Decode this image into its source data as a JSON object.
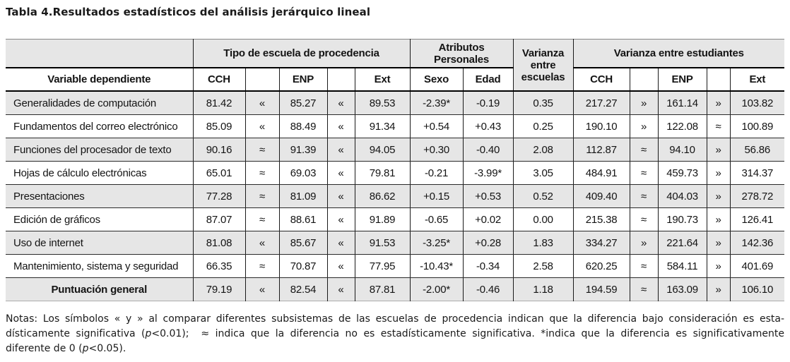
{
  "title": "Tabla 4.Resultados estadísticos del análisis jerárquico lineal",
  "colors": {
    "row_shade": "#e6e6e6",
    "grid_line": "#1a1a1a",
    "text": "#141414"
  },
  "table": {
    "group_headers": [
      "",
      "Tipo de escuela de procedencia",
      "Atributos Personales",
      "Varianza entre escuelas",
      "Varianza entre estudiantes"
    ],
    "sub_headers": [
      "Variable dependiente",
      "CCH",
      "",
      "ENP",
      "",
      "Ext",
      "Sexo",
      "Edad",
      "CCH",
      "",
      "ENP",
      "",
      "Ext"
    ],
    "rows": [
      {
        "label": "Generalidades de computación",
        "cells": [
          "81.42",
          "«",
          "85.27",
          "«",
          "89.53",
          "-2.39*",
          "-0.19",
          "0.35",
          "217.27",
          "»",
          "161.14",
          "»",
          "103.82"
        ]
      },
      {
        "label": "Fundamentos del correo electrónico",
        "cells": [
          "85.09",
          "«",
          "88.49",
          "«",
          "91.34",
          "+0.54",
          "+0.43",
          "0.25",
          "190.10",
          "»",
          "122.08",
          "≈",
          "100.89"
        ]
      },
      {
        "label": "Funciones del procesador de texto",
        "cells": [
          "90.16",
          "≈",
          "91.39",
          "«",
          "94.05",
          "+0.30",
          "-0.40",
          "2.08",
          "112.87",
          "≈",
          "94.10",
          "»",
          "56.86"
        ]
      },
      {
        "label": "Hojas de cálculo electrónicas",
        "cells": [
          "65.01",
          "≈",
          "69.03",
          "«",
          "79.81",
          "-0.21",
          "-3.99*",
          "3.05",
          "484.91",
          "≈",
          "459.73",
          "»",
          "314.37"
        ]
      },
      {
        "label": "Presentaciones",
        "cells": [
          "77.28",
          "≈",
          "81.09",
          "«",
          "86.62",
          "+0.15",
          "+0.53",
          "0.52",
          "409.40",
          "≈",
          "404.03",
          "»",
          "278.72"
        ]
      },
      {
        "label": "Edición de gráficos",
        "cells": [
          "87.07",
          "≈",
          "88.61",
          "«",
          "91.89",
          "-0.65",
          "+0.02",
          "0.00",
          "215.38",
          "≈",
          "190.73",
          "»",
          "126.41"
        ]
      },
      {
        "label": "Uso de internet",
        "cells": [
          "81.08",
          "«",
          "85.67",
          "«",
          "91.53",
          "-3.25*",
          "+0.28",
          "1.83",
          "334.27",
          "»",
          "221.64",
          "»",
          "142.36"
        ]
      },
      {
        "label": "Mantenimiento, sistema y seguridad",
        "cells": [
          "66.35",
          "≈",
          "70.87",
          "«",
          "77.95",
          "-10.43*",
          "-0.34",
          "2.58",
          "620.25",
          "≈",
          "584.11",
          "»",
          "401.69"
        ]
      },
      {
        "label": "Puntuación general",
        "total": true,
        "cells": [
          "79.19",
          "«",
          "82.54",
          "«",
          "87.81",
          "-2.00*",
          "-0.46",
          "1.18",
          "194.59",
          "≈",
          "163.09",
          "»",
          "106.10"
        ]
      }
    ]
  },
  "notes": {
    "lines": [
      [
        {
          "t": "Notas: Los símbolos « y » al comparar diferentes subsistemas de las escuelas de procedencia indican que la diferencia bajo consideración es esta-"
        }
      ],
      [
        {
          "t": "dísticamente significativa ("
        },
        {
          "t": "p",
          "i": true
        },
        {
          "t": "<0.01);  ≈ indica que la diferencia no es estadísticamente significativa. *indica que la diferencia es significativamente"
        }
      ],
      [
        {
          "t": "diferente de 0 ("
        },
        {
          "t": "p",
          "i": true
        },
        {
          "t": "<0.05)."
        }
      ]
    ]
  }
}
